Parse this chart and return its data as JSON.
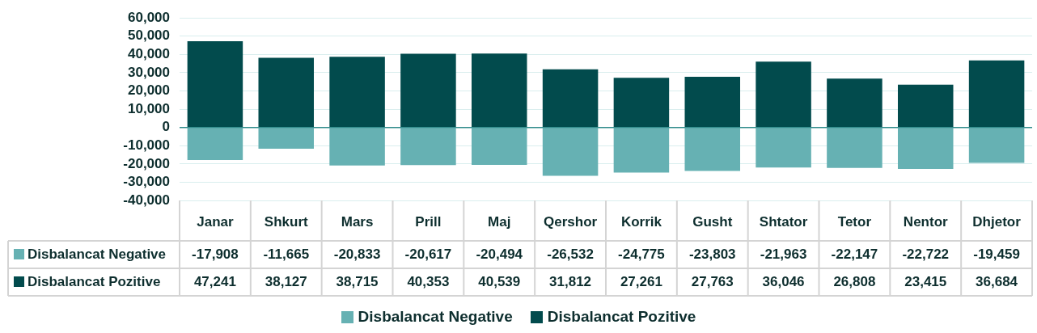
{
  "chart_data": {
    "type": "bar",
    "stacked": true,
    "categories": [
      "Janar",
      "Shkurt",
      "Mars",
      "Prill",
      "Maj",
      "Qershor",
      "Korrik",
      "Gusht",
      "Shtator",
      "Tetor",
      "Nentor",
      "Dhjetor"
    ],
    "series": [
      {
        "name": "Disbalancat Negative",
        "color": "#66b1b3",
        "values": [
          -17908,
          -11665,
          -20833,
          -20617,
          -20494,
          -26532,
          -24775,
          -23803,
          -21963,
          -22147,
          -22722,
          -19459
        ],
        "value_labels": [
          "-17,908",
          "-11,665",
          "-20,833",
          "-20,617",
          "-20,494",
          "-26,532",
          "-24,775",
          "-23,803",
          "-21,963",
          "-22,147",
          "-22,722",
          "-19,459"
        ]
      },
      {
        "name": "Disbalancat Pozitive",
        "color": "#024b4d",
        "values": [
          47241,
          38127,
          38715,
          40353,
          40539,
          31812,
          27261,
          27763,
          36046,
          26808,
          23415,
          36684
        ],
        "value_labels": [
          "47,241",
          "38,127",
          "38,715",
          "40,353",
          "40,539",
          "31,812",
          "27,261",
          "27,763",
          "36,046",
          "26,808",
          "23,415",
          "36,684"
        ]
      }
    ],
    "ylim": [
      -40000,
      60000
    ],
    "yticks": [
      {
        "value": -40000,
        "label": "-40,000"
      },
      {
        "value": -30000,
        "label": "-30,000"
      },
      {
        "value": -20000,
        "label": "-20,000"
      },
      {
        "value": -10000,
        "label": "-10,000"
      },
      {
        "value": 0,
        "label": "0"
      },
      {
        "value": 10000,
        "label": "10,000"
      },
      {
        "value": 20000,
        "label": "20,000"
      },
      {
        "value": 30000,
        "label": "30,000"
      },
      {
        "value": 40000,
        "label": "40,000"
      },
      {
        "value": 50000,
        "label": "50,000"
      },
      {
        "value": 60000,
        "label": "60,000"
      }
    ],
    "ref_lines": [
      {
        "axis": "y",
        "value": 0,
        "color": "#2e8b8b"
      }
    ],
    "grid": "y",
    "legend": "bottom"
  }
}
